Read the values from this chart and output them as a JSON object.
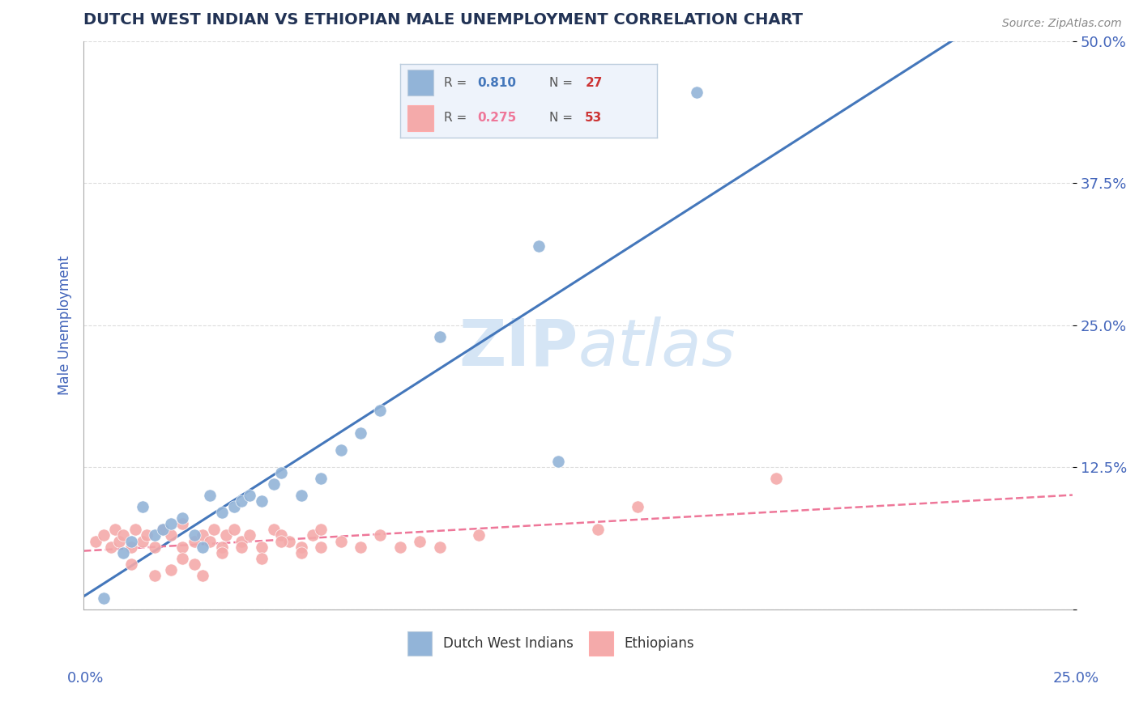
{
  "title": "DUTCH WEST INDIAN VS ETHIOPIAN MALE UNEMPLOYMENT CORRELATION CHART",
  "source": "Source: ZipAtlas.com",
  "ylabel": "Male Unemployment",
  "xmin": 0.0,
  "xmax": 0.25,
  "ymin": 0.0,
  "ymax": 0.5,
  "yticks": [
    0.0,
    0.125,
    0.25,
    0.375,
    0.5
  ],
  "ytick_labels": [
    "",
    "12.5%",
    "25.0%",
    "37.5%",
    "50.0%"
  ],
  "blue_R": 0.81,
  "blue_N": 27,
  "pink_R": 0.275,
  "pink_N": 53,
  "blue_color": "#92B4D8",
  "pink_color": "#F4AAAA",
  "blue_line_color": "#4477BB",
  "pink_line_color": "#EE7799",
  "axis_label_color": "#4466BB",
  "title_color": "#223355",
  "watermark_color": "#D5E5F5",
  "background_color": "#FFFFFF",
  "legend_box_facecolor": "#EEF3FB",
  "legend_box_edgecolor": "#BBCCDD",
  "grid_color": "#DDDDDD",
  "blue_scatter_x": [
    0.005,
    0.01,
    0.012,
    0.015,
    0.018,
    0.02,
    0.022,
    0.025,
    0.028,
    0.03,
    0.032,
    0.035,
    0.038,
    0.04,
    0.042,
    0.045,
    0.048,
    0.05,
    0.055,
    0.06,
    0.065,
    0.07,
    0.075,
    0.09,
    0.115,
    0.155,
    0.12
  ],
  "blue_scatter_y": [
    0.01,
    0.05,
    0.06,
    0.09,
    0.065,
    0.07,
    0.075,
    0.08,
    0.065,
    0.055,
    0.1,
    0.085,
    0.09,
    0.095,
    0.1,
    0.095,
    0.11,
    0.12,
    0.1,
    0.115,
    0.14,
    0.155,
    0.175,
    0.24,
    0.32,
    0.455,
    0.13
  ],
  "pink_scatter_x": [
    0.003,
    0.005,
    0.007,
    0.008,
    0.009,
    0.01,
    0.012,
    0.013,
    0.015,
    0.016,
    0.018,
    0.02,
    0.022,
    0.025,
    0.025,
    0.028,
    0.03,
    0.032,
    0.033,
    0.035,
    0.036,
    0.038,
    0.04,
    0.042,
    0.045,
    0.048,
    0.05,
    0.052,
    0.055,
    0.058,
    0.06,
    0.012,
    0.018,
    0.022,
    0.025,
    0.028,
    0.03,
    0.035,
    0.04,
    0.045,
    0.05,
    0.055,
    0.06,
    0.065,
    0.07,
    0.075,
    0.08,
    0.085,
    0.09,
    0.1,
    0.13,
    0.175,
    0.14
  ],
  "pink_scatter_y": [
    0.06,
    0.065,
    0.055,
    0.07,
    0.06,
    0.065,
    0.055,
    0.07,
    0.06,
    0.065,
    0.055,
    0.07,
    0.065,
    0.055,
    0.075,
    0.06,
    0.065,
    0.06,
    0.07,
    0.055,
    0.065,
    0.07,
    0.06,
    0.065,
    0.055,
    0.07,
    0.065,
    0.06,
    0.055,
    0.065,
    0.07,
    0.04,
    0.03,
    0.035,
    0.045,
    0.04,
    0.03,
    0.05,
    0.055,
    0.045,
    0.06,
    0.05,
    0.055,
    0.06,
    0.055,
    0.065,
    0.055,
    0.06,
    0.055,
    0.065,
    0.07,
    0.115,
    0.09
  ]
}
